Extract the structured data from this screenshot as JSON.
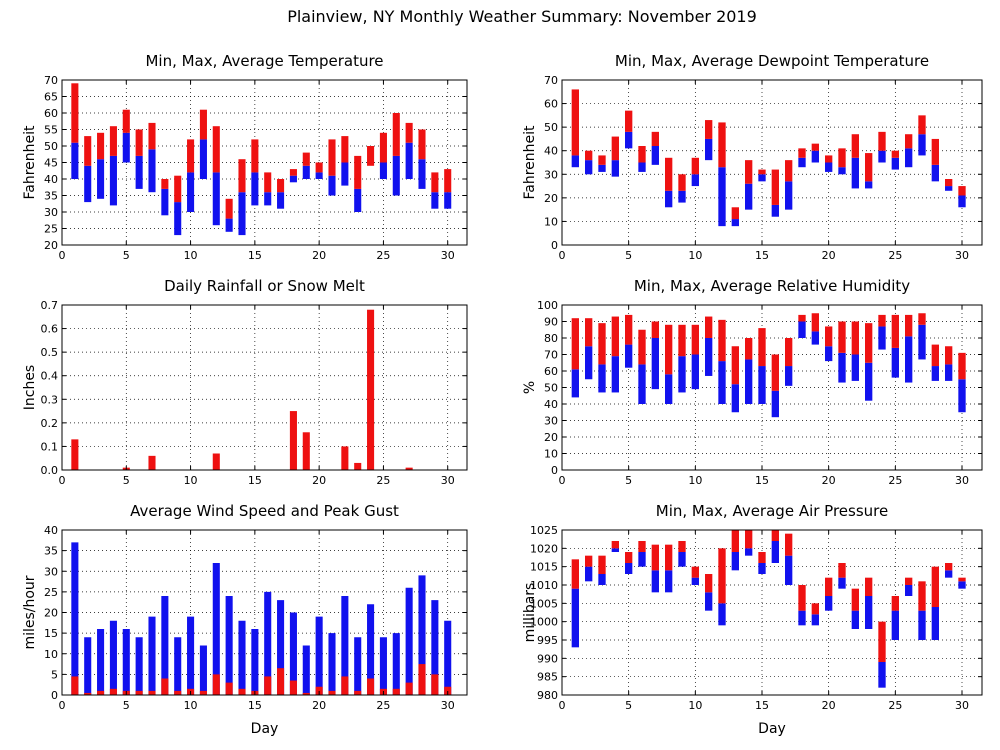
{
  "figure_title": "Plainview, NY Monthly Weather Summary: November 2019",
  "colors": {
    "max_part": "#ee1111",
    "min_part": "#1111ee",
    "gust": "#1111ee",
    "avg_wind": "#ee1111"
  },
  "chart_data": [
    {
      "id": "temp",
      "type": "bar",
      "title": "Min, Max, Average Temperature",
      "xlabel": "",
      "ylabel": "Fahrenheit",
      "ylim": [
        20,
        70
      ],
      "yticks": [
        20,
        25,
        30,
        35,
        40,
        45,
        50,
        55,
        60,
        65,
        70
      ],
      "xlim": [
        0,
        31.5
      ],
      "xticks": [
        0,
        5,
        10,
        15,
        20,
        25,
        30
      ],
      "days": [
        1,
        2,
        3,
        4,
        5,
        6,
        7,
        8,
        9,
        10,
        11,
        12,
        13,
        14,
        15,
        16,
        17,
        18,
        19,
        20,
        21,
        22,
        23,
        24,
        25,
        26,
        27,
        28,
        29,
        30
      ],
      "min": [
        40,
        33,
        34,
        32,
        45,
        37,
        36,
        29,
        23,
        30,
        40,
        26,
        24,
        23,
        32,
        32,
        31,
        39,
        40,
        40,
        35,
        38,
        30,
        44,
        40,
        35,
        40,
        37,
        31,
        31
      ],
      "avg": [
        51,
        44,
        46,
        47,
        54,
        47,
        49,
        37,
        33,
        42,
        52,
        42,
        28,
        36,
        42,
        36,
        36,
        41,
        44,
        42,
        41,
        45,
        37,
        44,
        45,
        47,
        51,
        46,
        36,
        36
      ],
      "max": [
        69,
        53,
        54,
        56,
        61,
        55,
        57,
        40,
        41,
        52,
        61,
        56,
        34,
        46,
        52,
        42,
        40,
        43,
        48,
        45,
        52,
        53,
        47,
        50,
        54,
        60,
        57,
        55,
        42,
        43
      ]
    },
    {
      "id": "dew",
      "type": "bar",
      "title": "Min, Max, Average Dewpoint Temperature",
      "xlabel": "",
      "ylabel": "Fahrenheit",
      "ylim": [
        0,
        70
      ],
      "yticks": [
        0,
        10,
        20,
        30,
        40,
        50,
        60,
        70
      ],
      "xlim": [
        0,
        31.5
      ],
      "xticks": [
        0,
        5,
        10,
        15,
        20,
        25,
        30
      ],
      "days": [
        1,
        2,
        3,
        4,
        5,
        6,
        7,
        8,
        9,
        10,
        11,
        12,
        13,
        14,
        15,
        16,
        17,
        18,
        19,
        20,
        21,
        22,
        23,
        24,
        25,
        26,
        27,
        28,
        29,
        30
      ],
      "min": [
        33,
        30,
        31,
        29,
        41,
        31,
        34,
        16,
        18,
        25,
        36,
        8,
        8,
        15,
        27,
        12,
        15,
        33,
        35,
        31,
        30,
        24,
        24,
        35,
        32,
        33,
        38,
        27,
        23,
        16
      ],
      "avg": [
        38,
        36,
        34,
        36,
        48,
        35,
        42,
        23,
        23,
        30,
        45,
        33,
        11,
        26,
        30,
        17,
        27,
        37,
        40,
        35,
        33,
        37,
        27,
        40,
        37,
        41,
        47,
        34,
        25,
        21
      ],
      "max": [
        66,
        40,
        38,
        46,
        57,
        42,
        48,
        37,
        30,
        37,
        53,
        52,
        16,
        36,
        32,
        32,
        36,
        41,
        43,
        38,
        41,
        47,
        39,
        48,
        40,
        47,
        55,
        45,
        28,
        25
      ]
    },
    {
      "id": "rain",
      "type": "bar",
      "title": "Daily Rainfall or Snow Melt",
      "xlabel": "",
      "ylabel": "Inches",
      "ylim": [
        0,
        0.7
      ],
      "yticks": [
        0.0,
        0.1,
        0.2,
        0.3,
        0.4,
        0.5,
        0.6,
        0.7
      ],
      "ytick_labels": [
        "0.0",
        "0.1",
        "0.2",
        "0.3",
        "0.4",
        "0.5",
        "0.6",
        "0.7"
      ],
      "xlim": [
        0,
        31.5
      ],
      "xticks": [
        0,
        5,
        10,
        15,
        20,
        25,
        30
      ],
      "days": [
        1,
        2,
        3,
        4,
        5,
        6,
        7,
        8,
        9,
        10,
        11,
        12,
        13,
        14,
        15,
        16,
        17,
        18,
        19,
        20,
        21,
        22,
        23,
        24,
        25,
        26,
        27,
        28,
        29,
        30
      ],
      "values": [
        0.13,
        0,
        0,
        0,
        0.01,
        0,
        0.06,
        0,
        0,
        0,
        0,
        0.07,
        0,
        0,
        0,
        0,
        0,
        0.25,
        0.16,
        0,
        0,
        0.1,
        0.03,
        0.68,
        0,
        0,
        0.01,
        0,
        0,
        0
      ]
    },
    {
      "id": "rh",
      "type": "bar",
      "title": "Min, Max, Average Relative Humidity",
      "xlabel": "",
      "ylabel": "%",
      "ylim": [
        0,
        100
      ],
      "yticks": [
        0,
        10,
        20,
        30,
        40,
        50,
        60,
        70,
        80,
        90,
        100
      ],
      "xlim": [
        0,
        31.5
      ],
      "xticks": [
        0,
        5,
        10,
        15,
        20,
        25,
        30
      ],
      "days": [
        1,
        2,
        3,
        4,
        5,
        6,
        7,
        8,
        9,
        10,
        11,
        12,
        13,
        14,
        15,
        16,
        17,
        18,
        19,
        20,
        21,
        22,
        23,
        24,
        25,
        26,
        27,
        28,
        29,
        30
      ],
      "min": [
        44,
        55,
        47,
        47,
        62,
        40,
        49,
        40,
        47,
        49,
        57,
        40,
        35,
        40,
        40,
        32,
        51,
        80,
        76,
        66,
        53,
        54,
        42,
        73,
        56,
        53,
        67,
        54,
        54,
        35
      ],
      "avg": [
        61,
        75,
        64,
        69,
        76,
        64,
        80,
        58,
        69,
        70,
        80,
        66,
        52,
        67,
        63,
        48,
        63,
        90,
        84,
        75,
        71,
        70,
        65,
        87,
        74,
        81,
        88,
        63,
        64,
        55
      ],
      "max": [
        92,
        92,
        89,
        93,
        94,
        85,
        90,
        88,
        88,
        88,
        93,
        91,
        75,
        80,
        86,
        70,
        80,
        94,
        95,
        87,
        90,
        90,
        89,
        94,
        94,
        94,
        95,
        76,
        75,
        71
      ]
    },
    {
      "id": "wind",
      "type": "bar",
      "title": "Average Wind Speed and Peak Gust",
      "xlabel": "Day",
      "ylabel": "miles/hour",
      "ylim": [
        0,
        40
      ],
      "yticks": [
        0,
        5,
        10,
        15,
        20,
        25,
        30,
        35,
        40
      ],
      "xlim": [
        0,
        31.5
      ],
      "xticks": [
        0,
        5,
        10,
        15,
        20,
        25,
        30
      ],
      "days": [
        1,
        2,
        3,
        4,
        5,
        6,
        7,
        8,
        9,
        10,
        11,
        12,
        13,
        14,
        15,
        16,
        17,
        18,
        19,
        20,
        21,
        22,
        23,
        24,
        25,
        26,
        27,
        28,
        29,
        30
      ],
      "gust": [
        37,
        14,
        16,
        18,
        16,
        14,
        19,
        24,
        14,
        19,
        12,
        32,
        24,
        18,
        16,
        25,
        23,
        20,
        12,
        19,
        15,
        24,
        14,
        22,
        14,
        15,
        26,
        29,
        23,
        18
      ],
      "avg": [
        4.5,
        0.5,
        1,
        1.5,
        1,
        1,
        1,
        4,
        1,
        1.5,
        1,
        5,
        3,
        1.5,
        1,
        4.5,
        6.5,
        3.5,
        0.5,
        2,
        1,
        4.5,
        1,
        4,
        1.5,
        1.5,
        3,
        7.5,
        5,
        2
      ]
    },
    {
      "id": "pres",
      "type": "bar",
      "title": "Min, Max, Average Air Pressure",
      "xlabel": "Day",
      "ylabel": "millibars",
      "ylim": [
        980,
        1025
      ],
      "yticks": [
        980,
        985,
        990,
        995,
        1000,
        1005,
        1010,
        1015,
        1020,
        1025
      ],
      "xlim": [
        0,
        31.5
      ],
      "xticks": [
        0,
        5,
        10,
        15,
        20,
        25,
        30
      ],
      "days": [
        1,
        2,
        3,
        4,
        5,
        6,
        7,
        8,
        9,
        10,
        11,
        12,
        13,
        14,
        15,
        16,
        17,
        18,
        19,
        20,
        21,
        22,
        23,
        24,
        25,
        26,
        27,
        28,
        29,
        30
      ],
      "min": [
        993,
        1011,
        1010,
        1019,
        1013,
        1015,
        1008,
        1008,
        1015,
        1010,
        1003,
        999,
        1014,
        1018,
        1013,
        1016,
        1010,
        999,
        999,
        1003,
        1009,
        998,
        998,
        982,
        995,
        1007,
        995,
        995,
        1012,
        1009
      ],
      "avg": [
        1009,
        1015,
        1013,
        1020,
        1016,
        1019,
        1014,
        1014,
        1019,
        1012,
        1008,
        1005,
        1019,
        1020,
        1016,
        1022,
        1018,
        1003,
        1002,
        1007,
        1012,
        1003,
        1007,
        989,
        1003,
        1010,
        1003,
        1004,
        1014,
        1011
      ],
      "max": [
        1017,
        1018,
        1018,
        1022,
        1019,
        1022,
        1021,
        1021,
        1022,
        1015,
        1013,
        1020,
        1025,
        1025,
        1019,
        1025,
        1024,
        1010,
        1005,
        1012,
        1016,
        1009,
        1012,
        1000,
        1007,
        1012,
        1011,
        1015,
        1016,
        1012
      ]
    }
  ]
}
